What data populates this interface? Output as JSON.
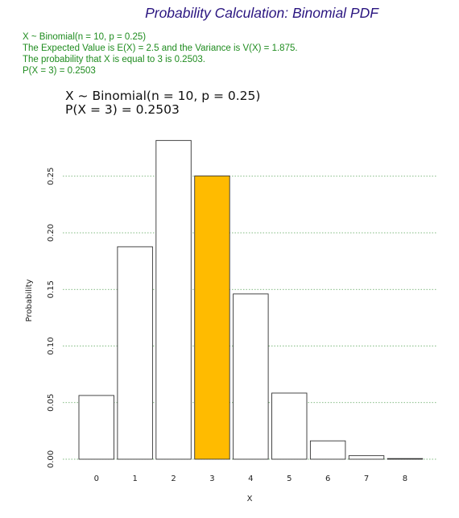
{
  "page": {
    "title": "Probability Calculation: Binomial PDF",
    "summary_lines": [
      "X ~ Binomial(n = 10, p = 0.25)",
      "The Expected Value is E(X) = 2.5 and the Variance is V(X) = 1.875.",
      "The probability that X is equal to 3 is 0.2503.",
      "P(X = 3) = 0.2503"
    ]
  },
  "colors": {
    "title": "#2a1580",
    "summary_text": "#1f8c1f",
    "highlight_bar": "#ffbb00",
    "bar_fill": "#ffffff",
    "bar_stroke": "#333333",
    "grid": "#5aa55a"
  },
  "chart_data": {
    "type": "bar",
    "title_lines": [
      "X ~ Binomial(n = 10, p = 0.25)",
      "P(X = 3) = 0.2503"
    ],
    "xlabel": "X",
    "ylabel": "Probability",
    "categories": [
      "0",
      "1",
      "2",
      "3",
      "4",
      "5",
      "6",
      "7",
      "8"
    ],
    "values": [
      0.0563,
      0.1877,
      0.2816,
      0.2503,
      0.146,
      0.0584,
      0.0162,
      0.0031,
      0.0004
    ],
    "highlight_category": "3",
    "ylim": [
      0,
      0.28
    ],
    "yticks": [
      "0.00",
      "0.05",
      "0.10",
      "0.15",
      "0.20",
      "0.25"
    ],
    "grid": "horizontal dotted"
  }
}
